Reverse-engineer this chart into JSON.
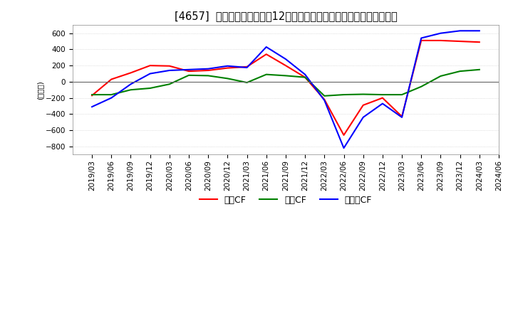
{
  "title": "[4657]  キャッシュフローの12か月移動合計の対前年同期増減額の推移",
  "ylabel": "(百万円)",
  "ylim": [
    -900,
    700
  ],
  "yticks": [
    -800,
    -600,
    -400,
    -200,
    0,
    200,
    400,
    600
  ],
  "legend": [
    "営業CF",
    "投資CF",
    "フリーCF"
  ],
  "legend_colors": [
    "#ff0000",
    "#008000",
    "#0000ff"
  ],
  "dates": [
    "2019/03",
    "2019/06",
    "2019/09",
    "2019/12",
    "2020/03",
    "2020/06",
    "2020/09",
    "2020/12",
    "2021/03",
    "2021/06",
    "2021/09",
    "2021/12",
    "2022/03",
    "2022/06",
    "2022/09",
    "2022/12",
    "2023/03",
    "2023/06",
    "2023/09",
    "2023/12",
    "2024/03",
    "2024/06"
  ],
  "operating_cf": [
    -170,
    30,
    110,
    200,
    195,
    130,
    140,
    170,
    185,
    340,
    200,
    55,
    -220,
    -660,
    -290,
    -200,
    -430,
    510,
    510,
    500,
    490,
    null
  ],
  "investing_cf": [
    -160,
    -160,
    -100,
    -80,
    -30,
    80,
    75,
    40,
    -10,
    90,
    75,
    55,
    -175,
    -160,
    -155,
    -160,
    -160,
    -60,
    70,
    130,
    150,
    null
  ],
  "free_cf": [
    -310,
    -200,
    -30,
    100,
    140,
    150,
    160,
    195,
    175,
    430,
    280,
    90,
    -230,
    -820,
    -440,
    -270,
    -440,
    540,
    600,
    630,
    630,
    null
  ],
  "bg_color": "#ffffff",
  "grid_color": "#c8c8c8",
  "title_fontsize": 10.5,
  "axis_fontsize": 7.5
}
